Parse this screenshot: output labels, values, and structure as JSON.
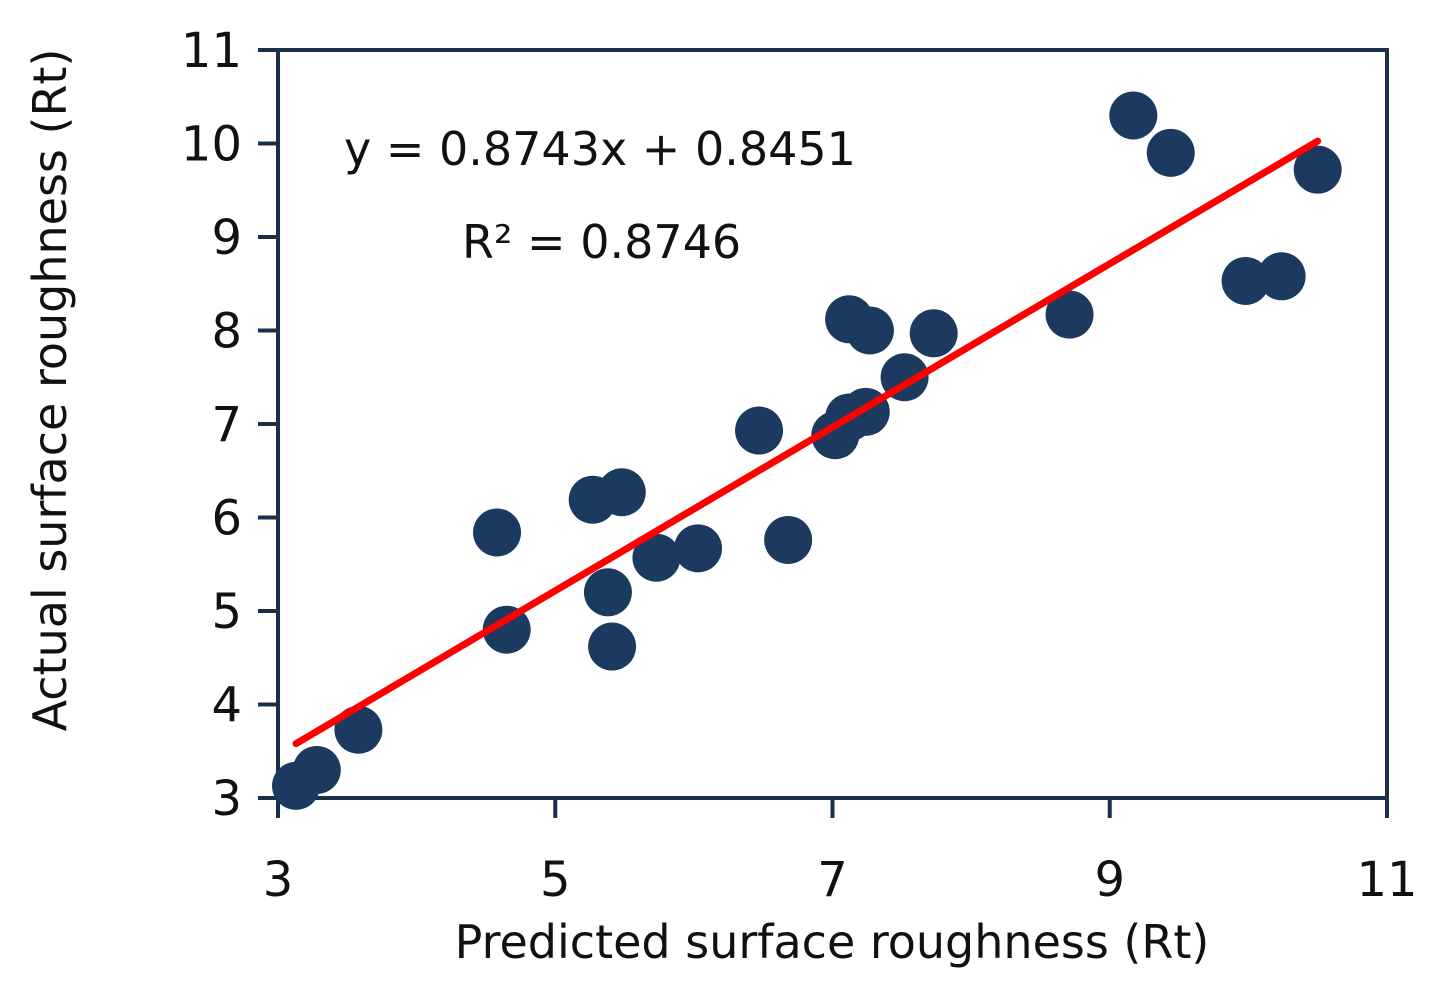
{
  "chart_data": {
    "type": "scatter",
    "title": "",
    "xlabel": "Predicted surface roughness (Rt)",
    "ylabel": "Actual surface roughness (Rt)",
    "xlim": [
      3,
      11
    ],
    "ylim": [
      3,
      11
    ],
    "x_ticks": [
      3,
      5,
      7,
      9,
      11
    ],
    "y_ticks": [
      3,
      4,
      5,
      6,
      7,
      8,
      9,
      10,
      11
    ],
    "grid": false,
    "legend": "none",
    "equation_label": "y = 0.8743x + 0.8451",
    "r2_label": "R² = 0.8746",
    "trendline": {
      "slope": 0.8743,
      "intercept": 0.8451,
      "x_range": [
        3.13,
        10.5
      ]
    },
    "series": [
      {
        "points": [
          [
            3.13,
            3.13
          ],
          [
            3.28,
            3.3
          ],
          [
            3.58,
            3.73
          ],
          [
            4.58,
            5.84
          ],
          [
            4.65,
            4.8
          ],
          [
            5.27,
            6.19
          ],
          [
            5.38,
            5.2
          ],
          [
            5.41,
            4.62
          ],
          [
            5.48,
            6.27
          ],
          [
            5.73,
            5.57
          ],
          [
            6.03,
            5.67
          ],
          [
            6.47,
            6.93
          ],
          [
            6.68,
            5.76
          ],
          [
            7.02,
            6.88
          ],
          [
            7.12,
            7.07
          ],
          [
            7.24,
            7.13
          ],
          [
            7.12,
            8.12
          ],
          [
            7.27,
            8.0
          ],
          [
            7.52,
            7.5
          ],
          [
            7.73,
            7.97
          ],
          [
            8.71,
            8.17
          ],
          [
            9.17,
            10.3
          ],
          [
            9.44,
            9.9
          ],
          [
            9.98,
            8.53
          ],
          [
            10.24,
            8.58
          ],
          [
            10.5,
            9.72
          ]
        ]
      }
    ],
    "colors": {
      "points": "#1c3a60",
      "trendline": "#ff0000",
      "axis": "#1c2f4a"
    }
  }
}
